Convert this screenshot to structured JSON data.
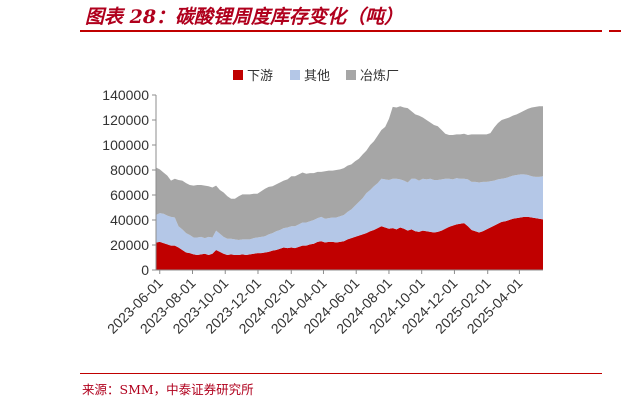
{
  "figure": {
    "title": "图表 28：碳酸锂周度库存变化（吨）",
    "source": "来源：SMM，中泰证券研究所"
  },
  "colors": {
    "brand_red": "#b0001d",
    "downstream": "#c00000",
    "other": "#b4c7e7",
    "smelter": "#a6a6a6"
  },
  "chart_data": {
    "type": "area",
    "stacked": true,
    "title": "",
    "xlabel": "",
    "ylabel": "",
    "ylim": [
      0,
      140000
    ],
    "yticks": [
      0,
      20000,
      40000,
      60000,
      80000,
      100000,
      120000,
      140000
    ],
    "ytick_labels": [
      "0",
      "20000",
      "40000",
      "60000",
      "80000",
      "100000",
      "120000",
      "140000"
    ],
    "xtick_labels": [
      "2023-06-01",
      "2023-08-01",
      "2023-10-01",
      "2023-12-01",
      "2024-02-01",
      "2024-04-01",
      "2024-06-01",
      "2024-08-01",
      "2024-10-01",
      "2024-12-01",
      "2025-02-01",
      "2025-04-01"
    ],
    "grid": false,
    "legend_position": "top",
    "x": [
      "2023-05-25",
      "2023-06-01",
      "2023-06-08",
      "2023-06-15",
      "2023-06-22",
      "2023-06-29",
      "2023-07-06",
      "2023-07-13",
      "2023-07-20",
      "2023-07-27",
      "2023-08-03",
      "2023-08-10",
      "2023-08-17",
      "2023-08-24",
      "2023-08-31",
      "2023-09-07",
      "2023-09-14",
      "2023-09-21",
      "2023-09-28",
      "2023-10-05",
      "2023-10-12",
      "2023-10-19",
      "2023-10-26",
      "2023-11-02",
      "2023-11-09",
      "2023-11-16",
      "2023-11-23",
      "2023-11-30",
      "2023-12-07",
      "2023-12-14",
      "2023-12-21",
      "2023-12-28",
      "2024-01-04",
      "2024-01-11",
      "2024-01-18",
      "2024-01-25",
      "2024-02-01",
      "2024-02-08",
      "2024-02-15",
      "2024-02-22",
      "2024-02-29",
      "2024-03-07",
      "2024-03-14",
      "2024-03-21",
      "2024-03-28",
      "2024-04-04",
      "2024-04-11",
      "2024-04-18",
      "2024-04-25",
      "2024-05-02",
      "2024-05-09",
      "2024-05-16",
      "2024-05-23",
      "2024-05-30",
      "2024-06-06",
      "2024-06-13",
      "2024-06-20",
      "2024-06-27",
      "2024-07-04",
      "2024-07-11",
      "2024-07-18",
      "2024-07-25",
      "2024-08-01",
      "2024-08-08",
      "2024-08-15",
      "2024-08-22",
      "2024-08-29",
      "2024-09-05",
      "2024-09-12",
      "2024-09-19",
      "2024-09-26",
      "2024-10-03",
      "2024-10-10",
      "2024-10-17",
      "2024-10-24",
      "2024-10-31",
      "2024-11-07",
      "2024-11-14",
      "2024-11-21",
      "2024-11-28",
      "2024-12-05",
      "2024-12-12",
      "2024-12-19",
      "2024-12-26",
      "2025-01-02",
      "2025-01-09",
      "2025-01-16",
      "2025-01-23",
      "2025-01-30",
      "2025-02-06",
      "2025-02-13",
      "2025-02-20",
      "2025-02-27",
      "2025-03-06",
      "2025-03-13",
      "2025-03-20",
      "2025-03-27",
      "2025-04-03",
      "2025-04-10",
      "2025-04-17",
      "2025-04-24",
      "2025-05-01",
      "2025-05-08",
      "2025-05-15"
    ],
    "series": [
      {
        "name": "下游",
        "values": [
          22000,
          22500,
          21500,
          20500,
          19500,
          19500,
          18000,
          16000,
          14000,
          13500,
          12500,
          12000,
          12500,
          13000,
          12000,
          13000,
          16000,
          14500,
          13000,
          12000,
          12500,
          12000,
          12000,
          12500,
          12000,
          12500,
          13000,
          13500,
          13500,
          14000,
          14500,
          15500,
          16000,
          17000,
          18000,
          17500,
          18000,
          17500,
          18500,
          19500,
          19500,
          20500,
          21000,
          22500,
          23000,
          22000,
          22500,
          22500,
          22000,
          22500,
          23000,
          24500,
          25500,
          26500,
          27500,
          28500,
          29500,
          31000,
          32000,
          33500,
          35000,
          34000,
          33000,
          33500,
          32500,
          34000,
          33000,
          31500,
          32500,
          31000,
          30500,
          31500,
          31000,
          30500,
          30000,
          30500,
          31500,
          33000,
          34500,
          35500,
          36500,
          37000,
          37500,
          35000,
          32000,
          31000,
          30000,
          31000,
          32500,
          34000,
          35500,
          37000,
          38500,
          39000,
          40000,
          41000,
          41500,
          42000,
          42500,
          42500,
          42000,
          41500,
          41000,
          40500
        ]
      },
      {
        "name": "其他",
        "values": [
          22000,
          23000,
          23500,
          23000,
          23000,
          22500,
          17000,
          16500,
          15500,
          14500,
          13500,
          14000,
          14000,
          12500,
          14500,
          13000,
          15500,
          14500,
          13500,
          13000,
          12500,
          12500,
          12000,
          12000,
          12500,
          12000,
          12500,
          12500,
          13000,
          13000,
          14000,
          14000,
          15000,
          15000,
          15500,
          16500,
          17000,
          17500,
          18000,
          18500,
          18500,
          18500,
          19000,
          19000,
          19500,
          19000,
          19000,
          19500,
          20000,
          20500,
          21000,
          22000,
          23000,
          25000,
          27000,
          29000,
          32000,
          33000,
          35000,
          36000,
          38000,
          38500,
          39000,
          39500,
          40500,
          38500,
          38500,
          38500,
          40500,
          42000,
          41000,
          41500,
          41500,
          42500,
          42000,
          41500,
          41000,
          40000,
          38500,
          37000,
          37000,
          36000,
          35500,
          37500,
          38500,
          39500,
          40000,
          39500,
          38000,
          37000,
          36000,
          35500,
          34500,
          34500,
          34500,
          34500,
          34500,
          34500,
          34000,
          33500,
          33000,
          33000,
          33500,
          34500
        ]
      },
      {
        "name": "冶炼厂",
        "values": [
          38000,
          35000,
          33000,
          32000,
          29000,
          31000,
          37000,
          39000,
          40000,
          40000,
          41500,
          42000,
          41500,
          42000,
          40500,
          40000,
          36000,
          35000,
          35500,
          34000,
          32000,
          32500,
          35000,
          36000,
          36000,
          36000,
          35500,
          35000,
          36500,
          38000,
          38000,
          37500,
          37500,
          38000,
          38000,
          38500,
          40000,
          40000,
          40000,
          40000,
          39000,
          38500,
          37500,
          37000,
          36000,
          38000,
          38000,
          37500,
          38000,
          37500,
          37500,
          37000,
          36000,
          35500,
          34500,
          35000,
          34000,
          36000,
          36000,
          38000,
          39000,
          42000,
          49000,
          57500,
          57000,
          58500,
          58500,
          59500,
          54000,
          51500,
          52000,
          49000,
          47500,
          45000,
          44000,
          43000,
          39500,
          36000,
          35000,
          35500,
          35000,
          35500,
          36000,
          35500,
          38000,
          38000,
          38500,
          38000,
          38000,
          38500,
          42500,
          45000,
          47000,
          47500,
          47500,
          48000,
          48500,
          49500,
          51000,
          53000,
          55000,
          56000,
          56500,
          56000
        ]
      }
    ]
  },
  "legend": {
    "items": [
      {
        "label": "下游",
        "color": "#c00000",
        "icon": "square-swatch"
      },
      {
        "label": "其他",
        "color": "#b4c7e7",
        "icon": "square-swatch"
      },
      {
        "label": "冶炼厂",
        "color": "#a6a6a6",
        "icon": "square-swatch"
      }
    ]
  }
}
